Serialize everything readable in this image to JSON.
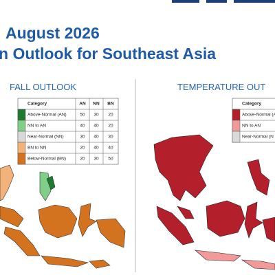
{
  "header": {
    "title_line1": "August 2026",
    "title_line2": "n Outlook for Southeast Asia"
  },
  "panels": [
    {
      "title": "FALL OUTLOOK",
      "legend": {
        "columns": [
          "Category",
          "AN",
          "NN",
          "BN"
        ],
        "rows": [
          {
            "color": "#1e7a2e",
            "cells": [
              "Above-Normal (AN)",
              50,
              30,
              20
            ]
          },
          {
            "color": "#7fcf8a",
            "cells": [
              "NN to AN",
              40,
              40,
              20
            ]
          },
          {
            "color": "#d9d9d9",
            "cells": [
              "Near-Normal (NN)",
              30,
              40,
              30
            ]
          },
          {
            "color": "#f2b27a",
            "cells": [
              "BN to NN",
              20,
              40,
              40
            ]
          },
          {
            "color": "#d4731f",
            "cells": [
              "Below-Normal (BN)",
              20,
              30,
              50
            ]
          }
        ]
      }
    },
    {
      "title": "TEMPERATURE OUT",
      "legend": {
        "columns": [
          "Category"
        ],
        "rows": [
          {
            "color": "#b3202b",
            "cells": [
              "Above-Normal (A"
            ]
          },
          {
            "color": "#f29a9a",
            "cells": [
              "NN to AN"
            ]
          },
          {
            "color": "#d9d9d9",
            "cells": [
              "Near-Normal (N"
            ]
          }
        ]
      }
    }
  ]
}
